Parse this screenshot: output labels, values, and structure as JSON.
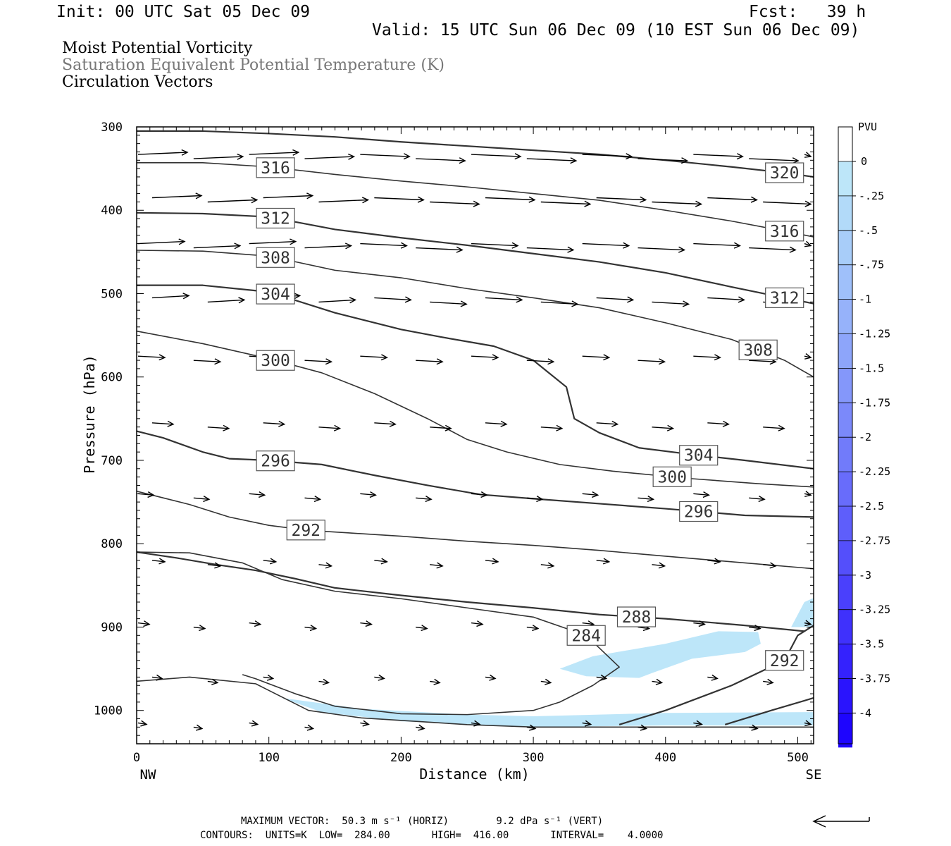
{
  "header": {
    "init": "Init: 00 UTC Sat 05 Dec 09",
    "fcst": "Fcst:   39 h",
    "valid": "Valid: 15 UTC Sun 06 Dec 09 (10 EST Sun 06 Dec 09)",
    "field1": "Moist Potential Vorticity",
    "field2": "Saturation Equivalent Potential Temperature (K)",
    "field3": "Circulation Vectors"
  },
  "footer": {
    "max_vector_line": "MAXIMUM VECTOR:  50.3 m s⁻¹ (HORIZ)        9.2 dPa s⁻¹ (VERT)",
    "contours_line": "CONTOURS:  UNITS=K  LOW=  284.00       HIGH=  416.00       INTERVAL=    4.0000"
  },
  "chart_data": {
    "type": "cross-section",
    "xlabel": "Distance (km)",
    "ylabel": "Pressure (hPa)",
    "xlim": [
      0,
      512
    ],
    "ylim": [
      300,
      1040
    ],
    "xticks": [
      0,
      100,
      200,
      300,
      400,
      500
    ],
    "yticks": [
      300,
      400,
      500,
      600,
      700,
      800,
      900,
      1000
    ],
    "x_end_labels": {
      "left": "NW",
      "right": "SE"
    },
    "colorbar": {
      "title": "PVU",
      "labels": [
        "0",
        "-.25",
        "-.5",
        "-.75",
        "-1",
        "-1.25",
        "-1.5",
        "-1.75",
        "-2",
        "-2.25",
        "-2.5",
        "-2.75",
        "-3",
        "-3.25",
        "-3.5",
        "-3.75",
        "-4"
      ],
      "colors": [
        "#ffffff",
        "#bde6f9",
        "#b2daf9",
        "#a8cdf9",
        "#9fc0fa",
        "#96b2fa",
        "#8da5fa",
        "#8497fa",
        "#7b89fa",
        "#717bfa",
        "#686cfb",
        "#5e5efb",
        "#544ffb",
        "#4a40fc",
        "#3f31fc",
        "#3422fd",
        "#2a14fd",
        "#1e05fe"
      ]
    },
    "contours": [
      {
        "label": "320",
        "points": [
          [
            0,
            305
          ],
          [
            50,
            305
          ],
          [
            100,
            308
          ],
          [
            150,
            312
          ],
          [
            200,
            318
          ],
          [
            250,
            323
          ],
          [
            300,
            328
          ],
          [
            350,
            333
          ],
          [
            400,
            340
          ],
          [
            450,
            348
          ],
          [
            490,
            355
          ],
          [
            512,
            360
          ]
        ]
      },
      {
        "label": "316",
        "points": [
          [
            0,
            343
          ],
          [
            50,
            343
          ],
          [
            100,
            348
          ],
          [
            150,
            357
          ],
          [
            200,
            365
          ],
          [
            250,
            372
          ],
          [
            300,
            380
          ],
          [
            350,
            388
          ],
          [
            400,
            400
          ],
          [
            450,
            413
          ],
          [
            490,
            425
          ],
          [
            512,
            432
          ]
        ]
      },
      {
        "label": "312",
        "points": [
          [
            0,
            403
          ],
          [
            50,
            404
          ],
          [
            100,
            408
          ],
          [
            150,
            423
          ],
          [
            200,
            433
          ],
          [
            250,
            442
          ],
          [
            300,
            452
          ],
          [
            350,
            462
          ],
          [
            400,
            475
          ],
          [
            450,
            492
          ],
          [
            490,
            505
          ],
          [
            512,
            512
          ]
        ]
      },
      {
        "label": "308",
        "points": [
          [
            0,
            448
          ],
          [
            50,
            449
          ],
          [
            100,
            455
          ],
          [
            150,
            472
          ],
          [
            200,
            481
          ],
          [
            250,
            494
          ],
          [
            300,
            505
          ],
          [
            350,
            517
          ],
          [
            400,
            535
          ],
          [
            450,
            555
          ],
          [
            490,
            580
          ],
          [
            512,
            600
          ]
        ]
      },
      {
        "label": "304",
        "points": [
          [
            0,
            490
          ],
          [
            50,
            490
          ],
          [
            100,
            498
          ],
          [
            150,
            523
          ],
          [
            200,
            543
          ],
          [
            230,
            552
          ],
          [
            270,
            563
          ],
          [
            300,
            580
          ],
          [
            325,
            612
          ],
          [
            331,
            650
          ],
          [
            350,
            667
          ],
          [
            380,
            685
          ],
          [
            420,
            693
          ],
          [
            460,
            700
          ],
          [
            512,
            710
          ]
        ]
      },
      {
        "label": "300",
        "points": [
          [
            0,
            545
          ],
          [
            50,
            560
          ],
          [
            100,
            578
          ],
          [
            140,
            595
          ],
          [
            180,
            620
          ],
          [
            220,
            650
          ],
          [
            250,
            675
          ],
          [
            280,
            690
          ],
          [
            320,
            705
          ],
          [
            360,
            713
          ],
          [
            420,
            722
          ],
          [
            470,
            728
          ],
          [
            512,
            732
          ]
        ]
      },
      {
        "label": "296",
        "points": [
          [
            0,
            665
          ],
          [
            20,
            673
          ],
          [
            50,
            690
          ],
          [
            70,
            698
          ],
          [
            100,
            700
          ],
          [
            140,
            705
          ],
          [
            180,
            718
          ],
          [
            220,
            730
          ],
          [
            260,
            741
          ],
          [
            300,
            746
          ],
          [
            350,
            752
          ],
          [
            400,
            758
          ],
          [
            460,
            766
          ],
          [
            512,
            768
          ]
        ]
      },
      {
        "label": "292",
        "points": [
          [
            0,
            737
          ],
          [
            20,
            745
          ],
          [
            40,
            753
          ],
          [
            70,
            768
          ],
          [
            100,
            778
          ],
          [
            130,
            784
          ],
          [
            160,
            787
          ],
          [
            200,
            791
          ],
          [
            250,
            797
          ],
          [
            300,
            802
          ],
          [
            350,
            808
          ],
          [
            400,
            815
          ],
          [
            460,
            823
          ],
          [
            512,
            830
          ]
        ]
      },
      {
        "label": "288",
        "points": [
          [
            0,
            810
          ],
          [
            30,
            817
          ],
          [
            60,
            825
          ],
          [
            90,
            832
          ],
          [
            120,
            842
          ],
          [
            150,
            853
          ],
          [
            200,
            862
          ],
          [
            250,
            870
          ],
          [
            300,
            877
          ],
          [
            350,
            885
          ],
          [
            400,
            890
          ],
          [
            460,
            898
          ],
          [
            505,
            905
          ]
        ]
      },
      {
        "label": "284",
        "points": [
          [
            0,
            810
          ],
          [
            40,
            811
          ],
          [
            80,
            823
          ],
          [
            110,
            843
          ],
          [
            150,
            857
          ],
          [
            200,
            866
          ],
          [
            250,
            877
          ],
          [
            300,
            888
          ],
          [
            340,
            910
          ],
          [
            365,
            948
          ],
          [
            345,
            970
          ],
          [
            320,
            990
          ],
          [
            300,
            1000
          ],
          [
            250,
            1005
          ],
          [
            200,
            1004
          ],
          [
            150,
            995
          ],
          [
            120,
            980
          ],
          [
            90,
            962
          ],
          [
            80,
            957
          ]
        ]
      },
      {
        "label": "292",
        "points": [
          [
            365,
            1017
          ],
          [
            400,
            1000
          ],
          [
            450,
            970
          ],
          [
            490,
            940
          ],
          [
            500,
            910
          ],
          [
            512,
            898
          ]
        ]
      },
      {
        "label": "",
        "points": [
          [
            0,
            965
          ],
          [
            40,
            960
          ],
          [
            90,
            968
          ],
          [
            130,
            1000
          ],
          [
            170,
            1009
          ],
          [
            250,
            1017
          ],
          [
            300,
            1020
          ],
          [
            400,
            1020
          ],
          [
            512,
            1020
          ]
        ]
      },
      {
        "label": "",
        "points": [
          [
            445,
            1017
          ],
          [
            480,
            1000
          ],
          [
            512,
            985
          ]
        ]
      }
    ],
    "pv_shading": [
      {
        "value": -0.25,
        "points": [
          [
            320,
            950
          ],
          [
            345,
            935
          ],
          [
            400,
            920
          ],
          [
            440,
            905
          ],
          [
            470,
            906
          ],
          [
            472,
            920
          ],
          [
            460,
            930
          ],
          [
            420,
            938
          ],
          [
            390,
            955
          ],
          [
            380,
            961
          ],
          [
            340,
            959
          ]
        ]
      },
      {
        "value": -0.25,
        "points": [
          [
            495,
            900
          ],
          [
            505,
            870
          ],
          [
            512,
            865
          ],
          [
            512,
            900
          ]
        ]
      },
      {
        "value": -0.25,
        "points": [
          [
            110,
            985
          ],
          [
            170,
            998
          ],
          [
            250,
            1005
          ],
          [
            300,
            1007
          ],
          [
            400,
            1003
          ],
          [
            512,
            1002
          ],
          [
            512,
            1018
          ],
          [
            400,
            1018
          ],
          [
            300,
            1020
          ],
          [
            200,
            1013
          ],
          [
            140,
            1002
          ]
        ]
      }
    ],
    "vector_note": "Circulation vectors shown with reference vector at lower right"
  }
}
